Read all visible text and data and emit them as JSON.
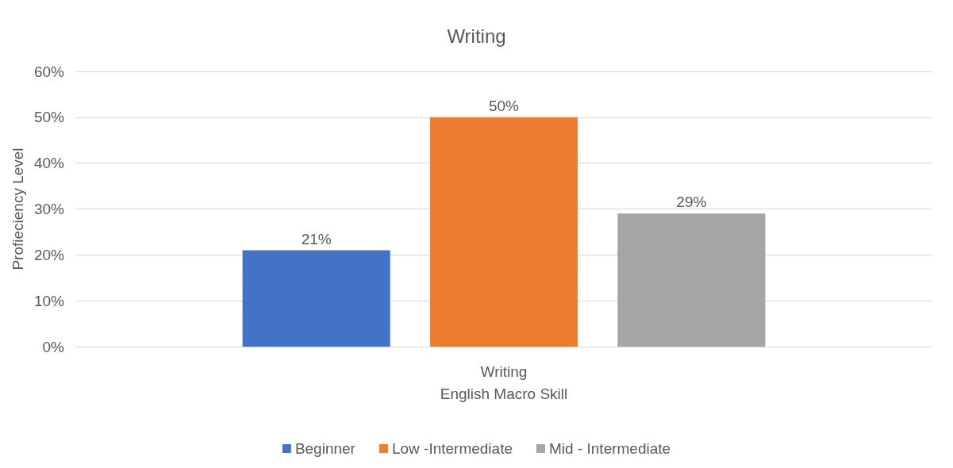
{
  "chart_data": {
    "type": "bar",
    "title": "Writing",
    "xlabel": "English Macro Skill",
    "ylabel": "Profieciency Level",
    "categories": [
      "Writing"
    ],
    "series": [
      {
        "name": "Beginner",
        "color": "#4472c4",
        "values": [
          21
        ],
        "value_labels": [
          "21%"
        ]
      },
      {
        "name": "Low -Intermediate",
        "color": "#ed7d31",
        "values": [
          50
        ],
        "value_labels": [
          "50%"
        ]
      },
      {
        "name": "Mid - Intermediate",
        "color": "#a5a5a5",
        "values": [
          29
        ],
        "value_labels": [
          "29%"
        ]
      }
    ],
    "ylim": [
      0,
      60
    ],
    "yticks": [
      {
        "value": 0,
        "label": "0%"
      },
      {
        "value": 10,
        "label": "10%"
      },
      {
        "value": 20,
        "label": "20%"
      },
      {
        "value": 30,
        "label": "30%"
      },
      {
        "value": 40,
        "label": "40%"
      },
      {
        "value": 50,
        "label": "50%"
      },
      {
        "value": 60,
        "label": "60%"
      }
    ],
    "grid": "y",
    "legend": "bottom"
  }
}
